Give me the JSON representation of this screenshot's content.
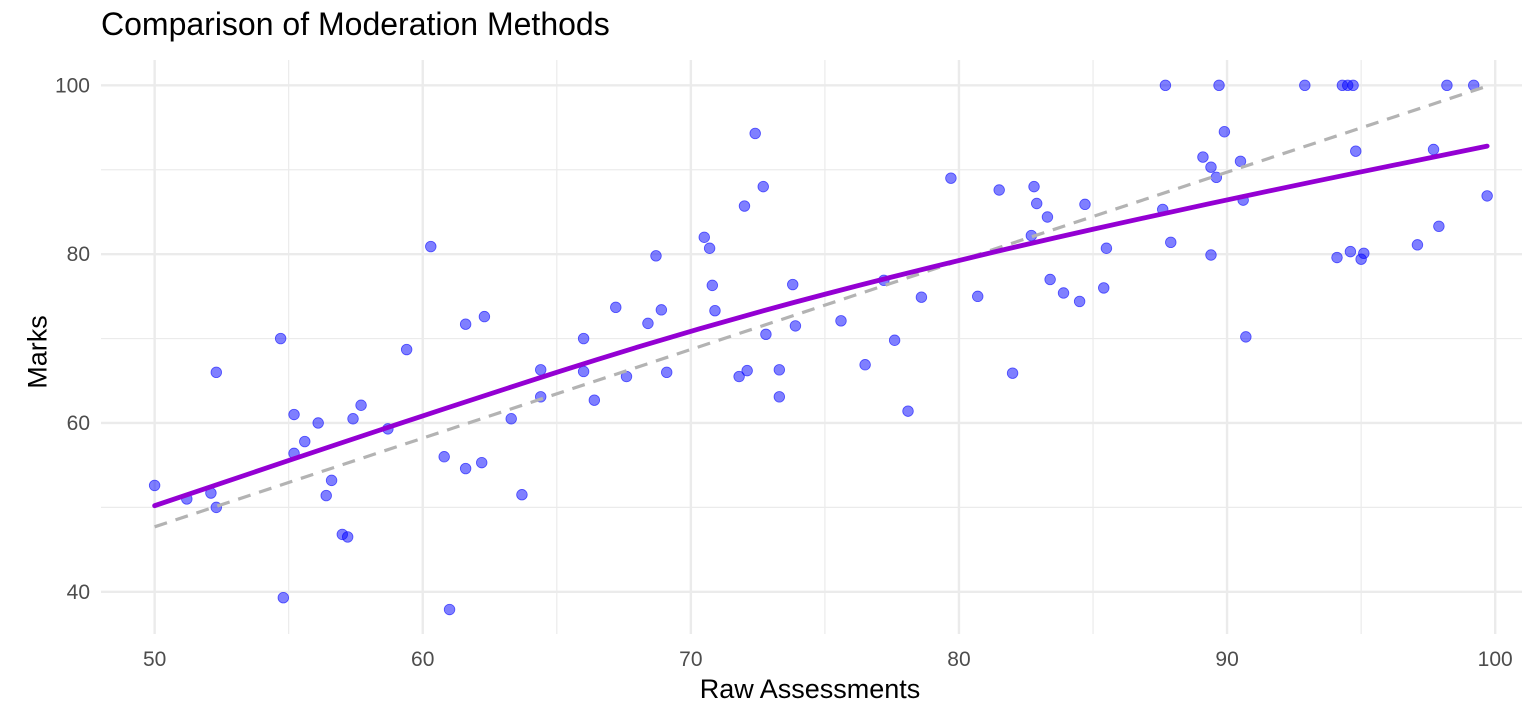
{
  "chart_data": {
    "type": "scatter",
    "title": "Comparison of Moderation Methods",
    "xlabel": "Raw Assessments",
    "ylabel": "Marks",
    "xlim": [
      48,
      101
    ],
    "ylim": [
      35,
      103
    ],
    "x_ticks": [
      50,
      60,
      70,
      80,
      90,
      100
    ],
    "y_ticks": [
      40,
      60,
      80,
      100
    ],
    "grid": true,
    "legend": "none",
    "colors": {
      "points": "#0000ff",
      "fitted_line": "#9400d3",
      "identity_line": "#b3b3b3",
      "grid": "#ebebeb"
    },
    "series": [
      {
        "type": "scatter",
        "points": [
          [
            50.0,
            52.6
          ],
          [
            51.2,
            51.0
          ],
          [
            52.1,
            51.7
          ],
          [
            52.3,
            50.0
          ],
          [
            52.3,
            66.0
          ],
          [
            54.7,
            70.0
          ],
          [
            54.8,
            39.3
          ],
          [
            55.2,
            61.0
          ],
          [
            55.2,
            56.4
          ],
          [
            55.6,
            57.8
          ],
          [
            56.1,
            60.0
          ],
          [
            56.4,
            51.4
          ],
          [
            56.6,
            53.2
          ],
          [
            57.0,
            46.8
          ],
          [
            57.2,
            46.5
          ],
          [
            57.4,
            60.5
          ],
          [
            57.7,
            62.1
          ],
          [
            58.7,
            59.3
          ],
          [
            59.4,
            68.7
          ],
          [
            60.3,
            80.9
          ],
          [
            60.8,
            56.0
          ],
          [
            61.0,
            37.9
          ],
          [
            61.6,
            71.7
          ],
          [
            61.6,
            54.6
          ],
          [
            62.2,
            55.3
          ],
          [
            62.3,
            72.6
          ],
          [
            63.3,
            60.5
          ],
          [
            63.7,
            51.5
          ],
          [
            64.4,
            66.3
          ],
          [
            64.4,
            63.1
          ],
          [
            66.0,
            70.0
          ],
          [
            66.0,
            66.1
          ],
          [
            66.4,
            62.7
          ],
          [
            67.2,
            73.7
          ],
          [
            67.6,
            65.5
          ],
          [
            68.4,
            71.8
          ],
          [
            68.7,
            79.8
          ],
          [
            68.9,
            73.4
          ],
          [
            69.1,
            66.0
          ],
          [
            70.5,
            82.0
          ],
          [
            70.7,
            80.7
          ],
          [
            70.8,
            76.3
          ],
          [
            70.9,
            73.3
          ],
          [
            71.8,
            65.5
          ],
          [
            72.0,
            85.7
          ],
          [
            72.1,
            66.2
          ],
          [
            72.4,
            94.3
          ],
          [
            72.7,
            88.0
          ],
          [
            72.8,
            70.5
          ],
          [
            73.3,
            66.3
          ],
          [
            73.3,
            63.1
          ],
          [
            73.8,
            76.4
          ],
          [
            73.9,
            71.5
          ],
          [
            75.6,
            72.1
          ],
          [
            76.5,
            66.9
          ],
          [
            77.2,
            76.9
          ],
          [
            77.6,
            69.8
          ],
          [
            78.1,
            61.4
          ],
          [
            78.6,
            74.9
          ],
          [
            79.7,
            89.0
          ],
          [
            80.7,
            75.0
          ],
          [
            81.5,
            87.6
          ],
          [
            82.0,
            65.9
          ],
          [
            82.7,
            82.2
          ],
          [
            82.8,
            88.0
          ],
          [
            82.9,
            86.0
          ],
          [
            83.3,
            84.4
          ],
          [
            83.4,
            77.0
          ],
          [
            83.9,
            75.4
          ],
          [
            84.5,
            74.4
          ],
          [
            84.7,
            85.9
          ],
          [
            85.4,
            76.0
          ],
          [
            85.5,
            80.7
          ],
          [
            87.6,
            85.3
          ],
          [
            87.7,
            100.0
          ],
          [
            87.9,
            81.4
          ],
          [
            89.1,
            91.5
          ],
          [
            89.4,
            90.3
          ],
          [
            89.4,
            79.9
          ],
          [
            89.6,
            89.1
          ],
          [
            89.7,
            100.0
          ],
          [
            89.9,
            94.5
          ],
          [
            90.5,
            91.0
          ],
          [
            90.6,
            86.4
          ],
          [
            90.7,
            70.2
          ],
          [
            92.9,
            100.0
          ],
          [
            94.1,
            79.6
          ],
          [
            94.3,
            100.0
          ],
          [
            94.5,
            100.0
          ],
          [
            94.6,
            80.3
          ],
          [
            94.7,
            100.0
          ],
          [
            94.8,
            92.2
          ],
          [
            95.0,
            79.4
          ],
          [
            95.1,
            80.1
          ],
          [
            97.1,
            81.1
          ],
          [
            97.7,
            92.4
          ],
          [
            97.9,
            83.3
          ],
          [
            98.2,
            100.0
          ],
          [
            99.2,
            100.0
          ],
          [
            99.7,
            86.9
          ]
        ]
      },
      {
        "type": "line",
        "style": "solid",
        "x": [
          50.0,
          60.0,
          70.0,
          80.0,
          90.0,
          99.7
        ],
        "y": [
          50.2,
          60.9,
          71.1,
          79.4,
          86.5,
          92.8
        ]
      },
      {
        "type": "line",
        "style": "dashed",
        "x": [
          50.0,
          99.7
        ],
        "y": [
          47.7,
          99.9
        ]
      }
    ]
  }
}
